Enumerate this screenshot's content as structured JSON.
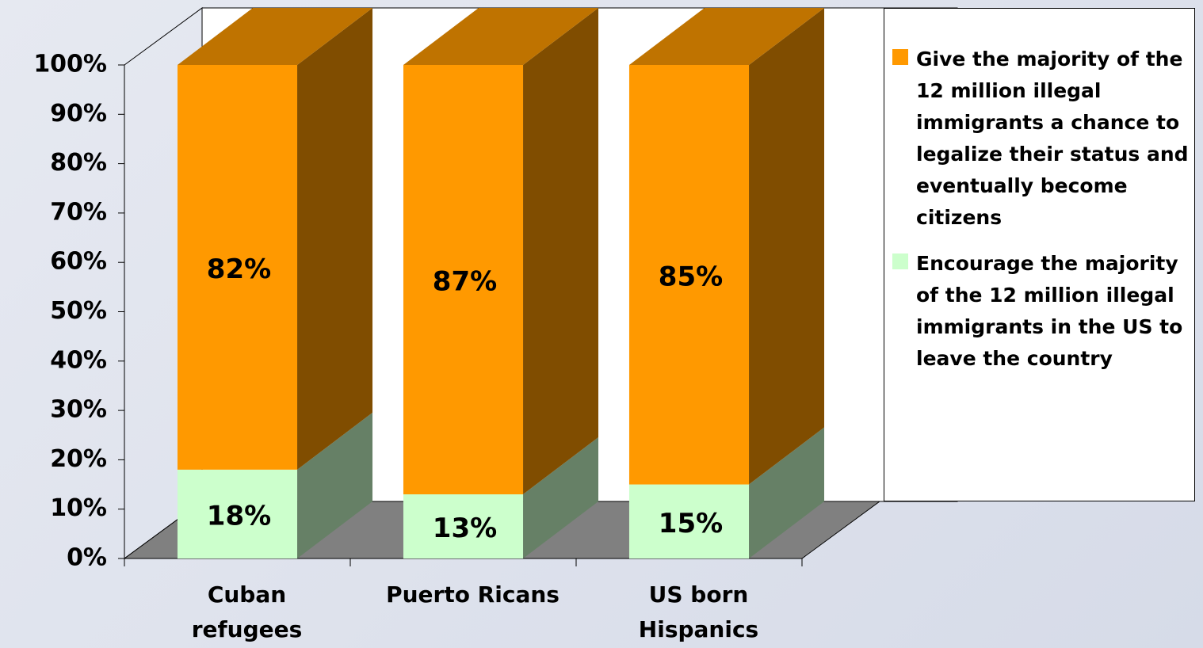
{
  "chart_data": {
    "type": "bar3d_stacked",
    "categories": [
      "Cuban\nrefugees",
      "Puerto Ricans",
      "US born\nHispanics"
    ],
    "series": [
      {
        "name": "Give the majority of the 12 million illegal immigrants a chance to legalize their status and eventually become citizens",
        "color": "#ff9900",
        "values": [
          82,
          87,
          85
        ],
        "value_labels": [
          "82%",
          "87%",
          "85%"
        ]
      },
      {
        "name": "Encourage the majority of the 12 million illegal immigrants in the US to leave the country",
        "color": "#ccffcc",
        "values": [
          18,
          13,
          15
        ],
        "value_labels": [
          "18%",
          "13%",
          "15%"
        ]
      }
    ],
    "ylim": [
      0,
      100
    ],
    "yticks": [
      {
        "value": 0,
        "label": "0%"
      },
      {
        "value": 10,
        "label": "10%"
      },
      {
        "value": 20,
        "label": "20%"
      },
      {
        "value": 30,
        "label": "30%"
      },
      {
        "value": 40,
        "label": "40%"
      },
      {
        "value": 50,
        "label": "50%"
      },
      {
        "value": 60,
        "label": "60%"
      },
      {
        "value": 70,
        "label": "70%"
      },
      {
        "value": 80,
        "label": "80%"
      },
      {
        "value": 90,
        "label": "90%"
      },
      {
        "value": 100,
        "label": "100%"
      }
    ],
    "legend": "right"
  }
}
